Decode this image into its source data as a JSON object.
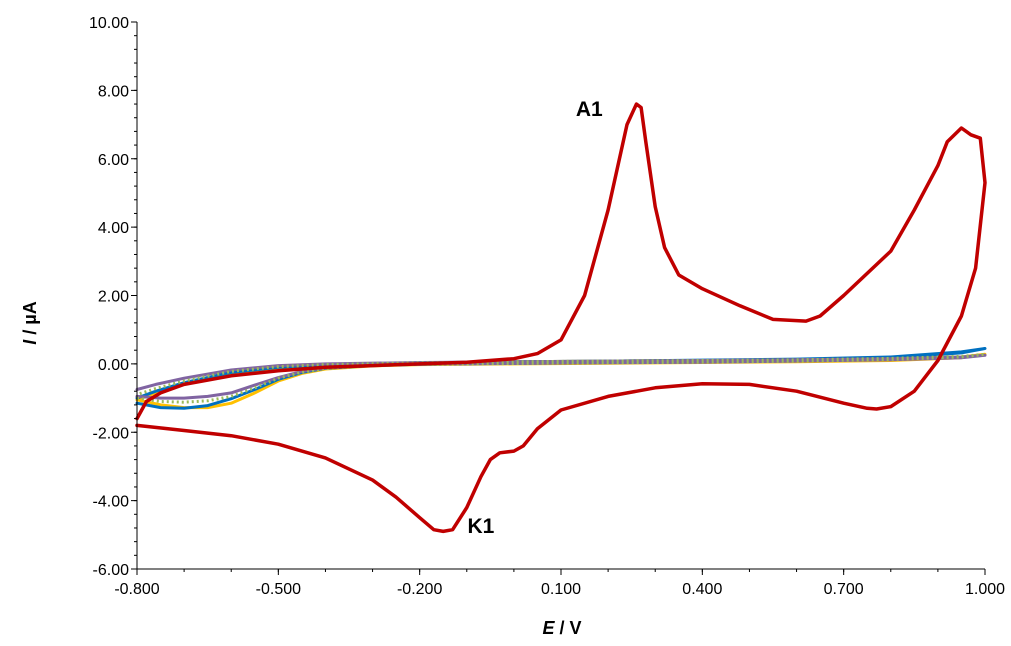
{
  "chart_data": {
    "type": "line",
    "xlabel_italic": "E",
    "xlabel_rest": " / V",
    "ylabel_italic": "I",
    "ylabel_rest": " / µA",
    "xlim": [
      -0.8,
      1.0
    ],
    "ylim": [
      -6.0,
      10.0
    ],
    "xticks": [
      -0.8,
      -0.5,
      -0.2,
      0.1,
      0.4,
      0.7,
      1.0
    ],
    "xtick_labels": [
      "-0.800",
      "-0.500",
      "-0.200",
      "0.100",
      "0.400",
      "0.700",
      "1.000"
    ],
    "yticks": [
      -6,
      -4,
      -2,
      0,
      2,
      4,
      6,
      8,
      10
    ],
    "ytick_labels": [
      "-6.00",
      "-4.00",
      "-2.00",
      "0.00",
      "2.00",
      "4.00",
      "6.00",
      "8.00",
      "10.00"
    ],
    "grid": false,
    "legend": "none",
    "annotations": [
      {
        "text": "A1",
        "x": 0.16,
        "y": 7.25
      },
      {
        "text": "K1",
        "x": -0.07,
        "y": -4.95
      }
    ],
    "series": [
      {
        "color": "#ffc000",
        "style": "solid",
        "x": [
          -0.8,
          -0.75,
          -0.7,
          -0.65,
          -0.6,
          -0.55,
          -0.5,
          -0.45,
          -0.4,
          -0.3,
          -0.2,
          0.0,
          0.2,
          0.4,
          0.6,
          0.8,
          0.95,
          1.0,
          0.95,
          0.8,
          0.6,
          0.4,
          0.2,
          0.0,
          -0.2,
          -0.4,
          -0.5,
          -0.6,
          -0.7,
          -0.76,
          -0.8
        ],
        "y": [
          -1.05,
          -1.2,
          -1.28,
          -1.28,
          -1.15,
          -0.85,
          -0.5,
          -0.28,
          -0.15,
          -0.06,
          -0.02,
          0.0,
          0.02,
          0.04,
          0.06,
          0.1,
          0.18,
          0.28,
          0.2,
          0.16,
          0.12,
          0.1,
          0.08,
          0.06,
          0.02,
          -0.05,
          -0.12,
          -0.3,
          -0.6,
          -0.85,
          -1.05
        ]
      },
      {
        "color": "#0070c0",
        "style": "solid",
        "x": [
          -0.8,
          -0.75,
          -0.7,
          -0.65,
          -0.6,
          -0.55,
          -0.5,
          -0.45,
          -0.4,
          -0.3,
          -0.2,
          0.0,
          0.2,
          0.4,
          0.6,
          0.8,
          0.95,
          1.0,
          0.95,
          0.8,
          0.6,
          0.4,
          0.2,
          0.0,
          -0.2,
          -0.4,
          -0.5,
          -0.6,
          -0.7,
          -0.76,
          -0.8
        ],
        "y": [
          -1.15,
          -1.28,
          -1.3,
          -1.22,
          -1.02,
          -0.75,
          -0.45,
          -0.25,
          -0.13,
          -0.05,
          -0.01,
          0.02,
          0.04,
          0.06,
          0.1,
          0.18,
          0.32,
          0.45,
          0.35,
          0.2,
          0.14,
          0.11,
          0.08,
          0.06,
          0.03,
          -0.03,
          -0.1,
          -0.25,
          -0.55,
          -0.8,
          -1.0
        ]
      },
      {
        "color": "#8064a2",
        "style": "solid",
        "x": [
          -0.8,
          -0.75,
          -0.7,
          -0.65,
          -0.6,
          -0.55,
          -0.5,
          -0.45,
          -0.4,
          -0.3,
          -0.2,
          0.0,
          0.2,
          0.4,
          0.6,
          0.8,
          0.95,
          1.0,
          0.95,
          0.8,
          0.6,
          0.4,
          0.2,
          0.0,
          -0.2,
          -0.4,
          -0.5,
          -0.6,
          -0.7,
          -0.76,
          -0.8
        ],
        "y": [
          -0.95,
          -1.0,
          -1.0,
          -0.95,
          -0.85,
          -0.62,
          -0.4,
          -0.22,
          -0.12,
          -0.04,
          -0.01,
          0.01,
          0.03,
          0.05,
          0.08,
          0.12,
          0.18,
          0.25,
          0.2,
          0.15,
          0.12,
          0.1,
          0.08,
          0.06,
          0.04,
          0.0,
          -0.05,
          -0.18,
          -0.42,
          -0.6,
          -0.75
        ]
      },
      {
        "color": "#9bbb59",
        "style": "dotted",
        "x": [
          -0.8,
          -0.75,
          -0.7,
          -0.65,
          -0.6,
          -0.55,
          -0.5,
          -0.45,
          -0.4,
          -0.3,
          -0.2,
          0.0,
          0.2,
          0.4,
          0.6,
          0.8,
          0.95,
          1.0,
          0.95,
          0.8,
          0.6,
          0.4,
          0.2,
          0.0,
          -0.2,
          -0.4,
          -0.5,
          -0.6,
          -0.7,
          -0.76,
          -0.8
        ],
        "y": [
          -1.0,
          -1.1,
          -1.12,
          -1.08,
          -0.95,
          -0.7,
          -0.42,
          -0.24,
          -0.13,
          -0.05,
          -0.01,
          0.01,
          0.03,
          0.05,
          0.08,
          0.13,
          0.2,
          0.28,
          0.22,
          0.16,
          0.12,
          0.1,
          0.08,
          0.06,
          0.03,
          -0.02,
          -0.08,
          -0.22,
          -0.5,
          -0.72,
          -0.9
        ]
      },
      {
        "color": "#c00000",
        "style": "solid",
        "x": [
          -0.8,
          -0.7,
          -0.6,
          -0.5,
          -0.4,
          -0.3,
          -0.25,
          -0.2,
          -0.17,
          -0.15,
          -0.13,
          -0.1,
          -0.07,
          -0.05,
          -0.03,
          0.0,
          0.02,
          0.05,
          0.1,
          0.2,
          0.3,
          0.4,
          0.5,
          0.6,
          0.7,
          0.75,
          0.77,
          0.8,
          0.85,
          0.9,
          0.95,
          0.98,
          1.0,
          0.99,
          0.97,
          0.95,
          0.92,
          0.9,
          0.85,
          0.8,
          0.7,
          0.65,
          0.62,
          0.55,
          0.48,
          0.4,
          0.35,
          0.32,
          0.3,
          0.28,
          0.27,
          0.26,
          0.24,
          0.2,
          0.15,
          0.1,
          0.05,
          0.0,
          -0.1,
          -0.2,
          -0.3,
          -0.4,
          -0.5,
          -0.6,
          -0.7,
          -0.75,
          -0.78,
          -0.8
        ],
        "y": [
          -1.8,
          -1.95,
          -2.1,
          -2.35,
          -2.75,
          -3.4,
          -3.9,
          -4.5,
          -4.85,
          -4.9,
          -4.85,
          -4.2,
          -3.3,
          -2.8,
          -2.6,
          -2.55,
          -2.4,
          -1.9,
          -1.35,
          -0.95,
          -0.7,
          -0.58,
          -0.6,
          -0.8,
          -1.15,
          -1.3,
          -1.32,
          -1.25,
          -0.8,
          0.1,
          1.4,
          2.8,
          5.3,
          6.6,
          6.7,
          6.9,
          6.5,
          5.8,
          4.5,
          3.3,
          2.0,
          1.4,
          1.25,
          1.3,
          1.7,
          2.2,
          2.6,
          3.4,
          4.6,
          6.5,
          7.5,
          7.6,
          7.0,
          4.5,
          2.0,
          0.7,
          0.3,
          0.15,
          0.05,
          0.0,
          -0.05,
          -0.1,
          -0.2,
          -0.35,
          -0.6,
          -0.85,
          -1.1,
          -1.6
        ]
      }
    ]
  }
}
